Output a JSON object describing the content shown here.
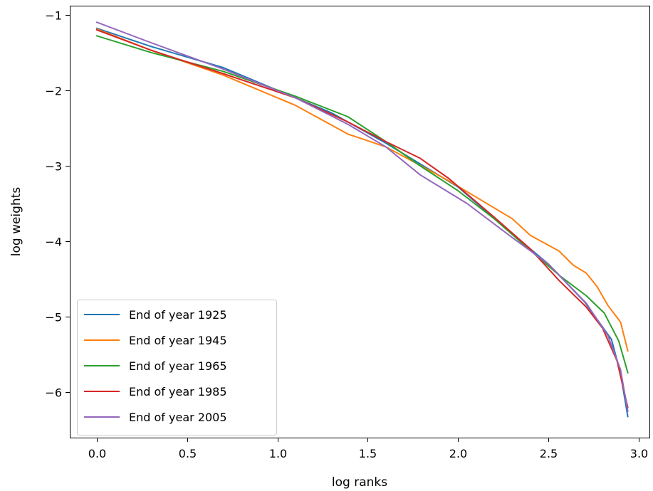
{
  "chart_data": {
    "type": "line",
    "xlabel": "log ranks",
    "ylabel": "log weights",
    "xlim": [
      -0.15,
      3.06
    ],
    "ylim": [
      -6.6,
      -0.88
    ],
    "x_ticks": [
      0.0,
      0.5,
      1.0,
      1.5,
      2.0,
      2.5,
      3.0
    ],
    "x_tick_labels": [
      "0.0",
      "0.5",
      "1.0",
      "1.5",
      "2.0",
      "2.5",
      "3.0"
    ],
    "y_ticks": [
      -1,
      -2,
      -3,
      -4,
      -5,
      -6
    ],
    "y_tick_labels": [
      "−1",
      "−2",
      "−3",
      "−4",
      "−5",
      "−6"
    ],
    "grid": false,
    "legend_position": "lower-left",
    "series": [
      {
        "name": "End of year 1925",
        "color": "#1f77b4",
        "x": [
          0.0,
          0.3,
          0.7,
          1.0,
          1.3,
          1.6,
          2.0,
          2.3,
          2.5,
          2.7,
          2.85,
          2.9,
          2.94
        ],
        "y": [
          -1.18,
          -1.42,
          -1.7,
          -2.0,
          -2.3,
          -2.7,
          -3.28,
          -3.9,
          -4.3,
          -4.8,
          -5.3,
          -5.75,
          -6.32
        ]
      },
      {
        "name": "End of year 1945",
        "color": "#ff7f0e",
        "x": [
          0.0,
          0.3,
          0.7,
          1.1,
          1.39,
          1.6,
          1.95,
          2.3,
          2.4,
          2.56,
          2.64,
          2.71,
          2.77,
          2.83,
          2.9,
          2.94
        ],
        "y": [
          -1.19,
          -1.47,
          -1.8,
          -2.2,
          -2.58,
          -2.75,
          -3.2,
          -3.7,
          -3.92,
          -4.13,
          -4.32,
          -4.42,
          -4.6,
          -4.85,
          -5.07,
          -5.45
        ]
      },
      {
        "name": "End of year 1965",
        "color": "#2ca02c",
        "x": [
          0.0,
          0.3,
          0.7,
          1.1,
          1.39,
          1.6,
          1.79,
          2.0,
          2.2,
          2.4,
          2.56,
          2.71,
          2.81,
          2.89,
          2.94
        ],
        "y": [
          -1.28,
          -1.5,
          -1.75,
          -2.08,
          -2.35,
          -2.68,
          -3.0,
          -3.33,
          -3.7,
          -4.12,
          -4.45,
          -4.72,
          -4.95,
          -5.32,
          -5.74
        ]
      },
      {
        "name": "End of year 1985",
        "color": "#d62728",
        "x": [
          0.0,
          0.3,
          0.7,
          1.1,
          1.39,
          1.6,
          1.79,
          1.95,
          2.2,
          2.4,
          2.56,
          2.71,
          2.8,
          2.88,
          2.94
        ],
        "y": [
          -1.2,
          -1.47,
          -1.78,
          -2.1,
          -2.42,
          -2.68,
          -2.9,
          -3.17,
          -3.68,
          -4.1,
          -4.52,
          -4.87,
          -5.15,
          -5.58,
          -6.2
        ]
      },
      {
        "name": "End of year 2005",
        "color": "#9467bd",
        "x": [
          0.0,
          0.3,
          0.7,
          1.1,
          1.39,
          1.6,
          1.79,
          2.05,
          2.3,
          2.5,
          2.71,
          2.83,
          2.9,
          2.94
        ],
        "y": [
          -1.1,
          -1.37,
          -1.72,
          -2.1,
          -2.45,
          -2.75,
          -3.12,
          -3.5,
          -3.95,
          -4.3,
          -4.82,
          -5.25,
          -5.7,
          -6.25
        ]
      }
    ]
  }
}
